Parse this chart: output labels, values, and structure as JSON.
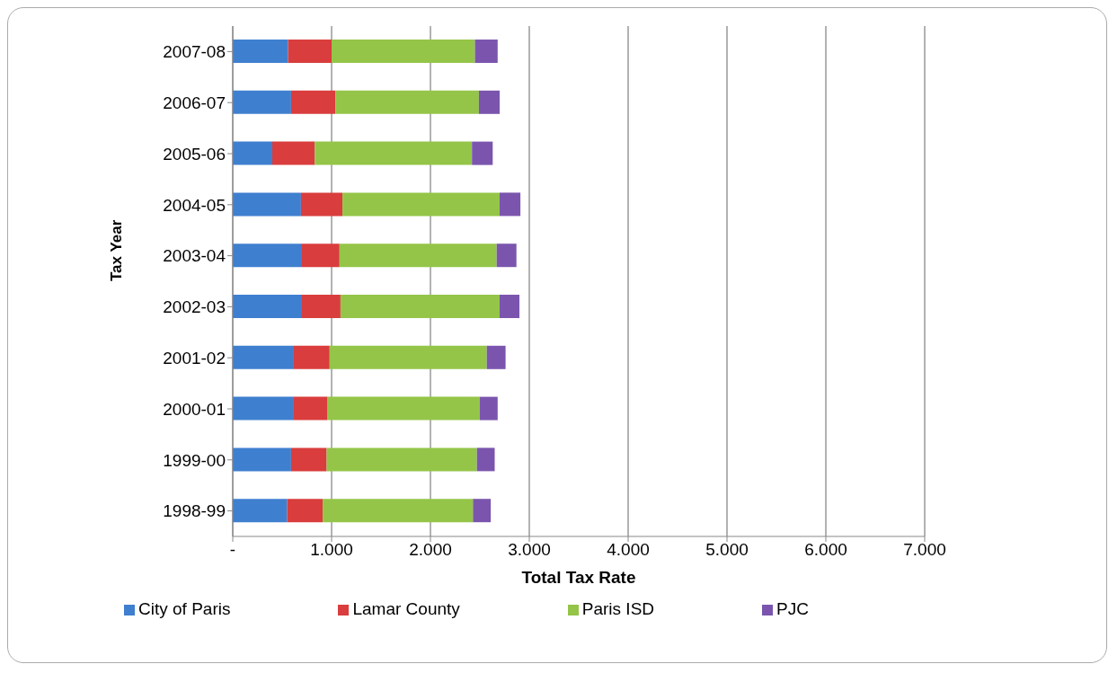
{
  "chart_data": {
    "type": "bar",
    "orientation": "horizontal",
    "stacked": true,
    "xlabel": "Total Tax Rate",
    "ylabel": "Tax Year",
    "categories": [
      "2007-08",
      "2006-07",
      "2005-06",
      "2004-05",
      "2003-04",
      "2002-03",
      "2001-02",
      "2000-01",
      "1999-00",
      "1998-99"
    ],
    "series": [
      {
        "name": "City of Paris",
        "color": "#3f7fcf",
        "values": [
          0.56,
          0.59,
          0.4,
          0.69,
          0.7,
          0.7,
          0.61,
          0.61,
          0.59,
          0.55
        ]
      },
      {
        "name": "Lamar County",
        "color": "#d93d3d",
        "values": [
          0.44,
          0.45,
          0.43,
          0.42,
          0.38,
          0.39,
          0.37,
          0.35,
          0.36,
          0.36
        ]
      },
      {
        "name": "Paris ISD",
        "color": "#94c548",
        "values": [
          1.45,
          1.45,
          1.59,
          1.59,
          1.59,
          1.61,
          1.59,
          1.54,
          1.52,
          1.52
        ]
      },
      {
        "name": "PJC",
        "color": "#7b55ad",
        "values": [
          0.23,
          0.21,
          0.21,
          0.21,
          0.2,
          0.2,
          0.19,
          0.18,
          0.18,
          0.18
        ]
      }
    ],
    "xlim": [
      0,
      7
    ],
    "xticks": [
      {
        "value": 0,
        "label": "-"
      },
      {
        "value": 1,
        "label": "1.000"
      },
      {
        "value": 2,
        "label": "2.000"
      },
      {
        "value": 3,
        "label": "3.000"
      },
      {
        "value": 4,
        "label": "4.000"
      },
      {
        "value": 5,
        "label": "5.000"
      },
      {
        "value": 6,
        "label": "6.000"
      },
      {
        "value": 7,
        "label": "7.000"
      }
    ],
    "grid": "x",
    "legend": "bottom"
  }
}
